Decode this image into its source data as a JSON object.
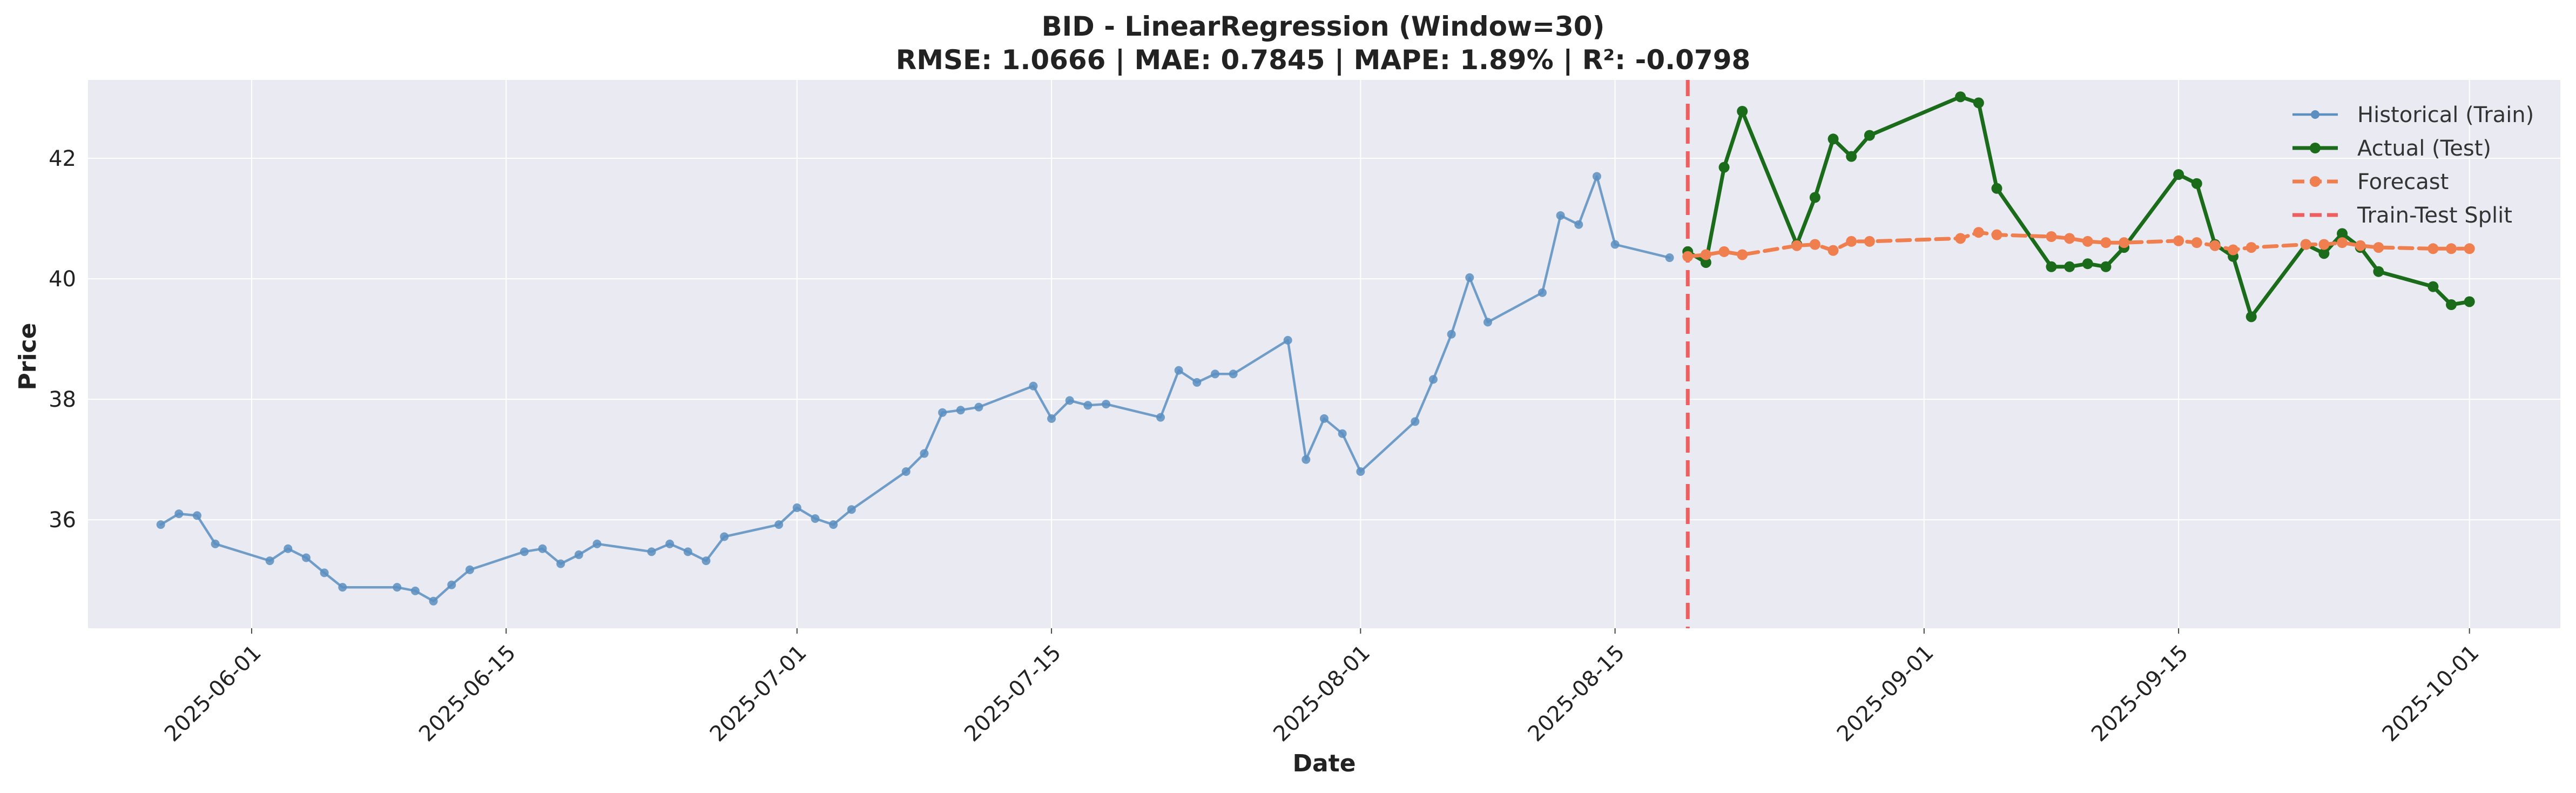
{
  "chart_data": {
    "type": "line",
    "title": "BID - LinearRegression (Window=30)",
    "subtitle": "RMSE: 1.0666 | MAE: 0.7845 | MAPE: 1.89% | R²: -0.0798",
    "xlabel": "Date",
    "ylabel": "Price",
    "xlim": [
      "2025-05-23",
      "2025-10-06"
    ],
    "ylim": [
      34.2,
      43.3
    ],
    "x_ticks": [
      "2025-06-01",
      "2025-06-15",
      "2025-07-01",
      "2025-07-15",
      "2025-08-01",
      "2025-08-15",
      "2025-09-01",
      "2025-09-15",
      "2025-10-01"
    ],
    "y_ticks": [
      36,
      38,
      40,
      42
    ],
    "grid": true,
    "legend_position": "top-right",
    "split_date": "2025-08-19",
    "series": [
      {
        "name": "Historical (Train)",
        "color": "#5b8fc0",
        "style": "solid-markers",
        "points": [
          [
            "2025-05-27",
            35.92
          ],
          [
            "2025-05-28",
            36.1
          ],
          [
            "2025-05-29",
            36.07
          ],
          [
            "2025-05-30",
            35.6
          ],
          [
            "2025-06-02",
            35.32
          ],
          [
            "2025-06-03",
            35.52
          ],
          [
            "2025-06-04",
            35.37
          ],
          [
            "2025-06-05",
            35.12
          ],
          [
            "2025-06-06",
            34.88
          ],
          [
            "2025-06-09",
            34.88
          ],
          [
            "2025-06-10",
            34.82
          ],
          [
            "2025-06-11",
            34.65
          ],
          [
            "2025-06-12",
            34.92
          ],
          [
            "2025-06-13",
            35.17
          ],
          [
            "2025-06-16",
            35.47
          ],
          [
            "2025-06-17",
            35.52
          ],
          [
            "2025-06-18",
            35.27
          ],
          [
            "2025-06-19",
            35.42
          ],
          [
            "2025-06-20",
            35.6
          ],
          [
            "2025-06-23",
            35.47
          ],
          [
            "2025-06-24",
            35.6
          ],
          [
            "2025-06-25",
            35.47
          ],
          [
            "2025-06-26",
            35.32
          ],
          [
            "2025-06-27",
            35.72
          ],
          [
            "2025-06-30",
            35.92
          ],
          [
            "2025-07-01",
            36.2
          ],
          [
            "2025-07-02",
            36.02
          ],
          [
            "2025-07-03",
            35.92
          ],
          [
            "2025-07-04",
            36.17
          ],
          [
            "2025-07-07",
            36.8
          ],
          [
            "2025-07-08",
            37.1
          ],
          [
            "2025-07-09",
            37.78
          ],
          [
            "2025-07-10",
            37.82
          ],
          [
            "2025-07-11",
            37.87
          ],
          [
            "2025-07-14",
            38.22
          ],
          [
            "2025-07-15",
            37.68
          ],
          [
            "2025-07-16",
            37.98
          ],
          [
            "2025-07-17",
            37.9
          ],
          [
            "2025-07-18",
            37.92
          ],
          [
            "2025-07-21",
            37.7
          ],
          [
            "2025-07-22",
            38.48
          ],
          [
            "2025-07-23",
            38.28
          ],
          [
            "2025-07-24",
            38.42
          ],
          [
            "2025-07-25",
            38.42
          ],
          [
            "2025-07-28",
            38.98
          ],
          [
            "2025-07-29",
            37.0
          ],
          [
            "2025-07-30",
            37.68
          ],
          [
            "2025-07-31",
            37.43
          ],
          [
            "2025-08-01",
            36.8
          ],
          [
            "2025-08-04",
            37.63
          ],
          [
            "2025-08-05",
            38.33
          ],
          [
            "2025-08-06",
            39.08
          ],
          [
            "2025-08-07",
            40.02
          ],
          [
            "2025-08-08",
            39.28
          ],
          [
            "2025-08-11",
            39.77
          ],
          [
            "2025-08-12",
            41.05
          ],
          [
            "2025-08-13",
            40.9
          ],
          [
            "2025-08-14",
            41.7
          ],
          [
            "2025-08-15",
            40.57
          ],
          [
            "2025-08-18",
            40.35
          ]
        ]
      },
      {
        "name": "Actual (Test)",
        "color": "#1a6b1a",
        "style": "solid-markers",
        "points": [
          [
            "2025-08-19",
            40.45
          ],
          [
            "2025-08-20",
            40.27
          ],
          [
            "2025-08-21",
            41.85
          ],
          [
            "2025-08-22",
            42.78
          ],
          [
            "2025-08-25",
            40.57
          ],
          [
            "2025-08-26",
            41.35
          ],
          [
            "2025-08-27",
            42.32
          ],
          [
            "2025-08-28",
            42.03
          ],
          [
            "2025-08-29",
            42.38
          ],
          [
            "2025-09-03",
            43.02
          ],
          [
            "2025-09-04",
            42.92
          ],
          [
            "2025-09-05",
            41.5
          ],
          [
            "2025-09-08",
            40.2
          ],
          [
            "2025-09-09",
            40.2
          ],
          [
            "2025-09-10",
            40.25
          ],
          [
            "2025-09-11",
            40.2
          ],
          [
            "2025-09-12",
            40.52
          ],
          [
            "2025-09-15",
            41.73
          ],
          [
            "2025-09-16",
            41.58
          ],
          [
            "2025-09-17",
            40.57
          ],
          [
            "2025-09-18",
            40.37
          ],
          [
            "2025-09-19",
            39.37
          ],
          [
            "2025-09-22",
            40.57
          ],
          [
            "2025-09-23",
            40.42
          ],
          [
            "2025-09-24",
            40.75
          ],
          [
            "2025-09-25",
            40.52
          ],
          [
            "2025-09-26",
            40.12
          ],
          [
            "2025-09-29",
            39.87
          ],
          [
            "2025-09-30",
            39.57
          ],
          [
            "2025-10-01",
            39.62
          ]
        ]
      },
      {
        "name": "Forecast",
        "color": "#f07f4f",
        "style": "dashed-markers",
        "points": [
          [
            "2025-08-19",
            40.37
          ],
          [
            "2025-08-20",
            40.4
          ],
          [
            "2025-08-21",
            40.45
          ],
          [
            "2025-08-22",
            40.4
          ],
          [
            "2025-08-25",
            40.55
          ],
          [
            "2025-08-26",
            40.57
          ],
          [
            "2025-08-27",
            40.47
          ],
          [
            "2025-08-28",
            40.62
          ],
          [
            "2025-08-29",
            40.62
          ],
          [
            "2025-09-03",
            40.67
          ],
          [
            "2025-09-04",
            40.77
          ],
          [
            "2025-09-05",
            40.73
          ],
          [
            "2025-09-08",
            40.7
          ],
          [
            "2025-09-09",
            40.67
          ],
          [
            "2025-09-10",
            40.62
          ],
          [
            "2025-09-11",
            40.6
          ],
          [
            "2025-09-12",
            40.6
          ],
          [
            "2025-09-15",
            40.63
          ],
          [
            "2025-09-16",
            40.6
          ],
          [
            "2025-09-17",
            40.55
          ],
          [
            "2025-09-18",
            40.48
          ],
          [
            "2025-09-19",
            40.52
          ],
          [
            "2025-09-22",
            40.57
          ],
          [
            "2025-09-23",
            40.57
          ],
          [
            "2025-09-24",
            40.6
          ],
          [
            "2025-09-25",
            40.55
          ],
          [
            "2025-09-26",
            40.52
          ],
          [
            "2025-09-29",
            40.5
          ],
          [
            "2025-09-30",
            40.5
          ],
          [
            "2025-10-01",
            40.5
          ]
        ]
      },
      {
        "name": "Train-Test Split",
        "color": "#ef5f5f",
        "style": "dashed-vertical"
      }
    ]
  }
}
